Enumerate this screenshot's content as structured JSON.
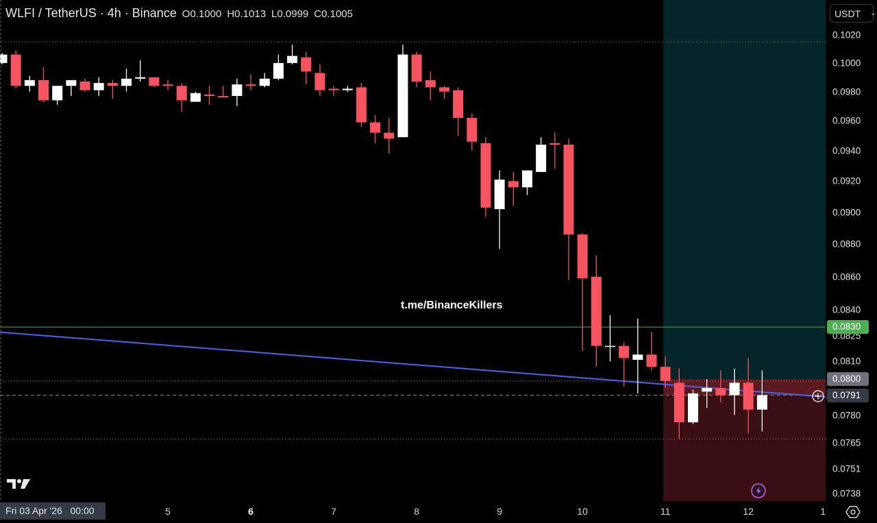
{
  "header": {
    "symbol": "WLFI / TetherUS · 4h · Binance",
    "open": "O0.1000",
    "high": "H0.1013",
    "low": "L0.0999",
    "close": "C0.1005"
  },
  "currency_select": {
    "value": "USDT"
  },
  "watermark": "t.me/BinanceKillers",
  "crosshair_time_label": "Fri 03 Apr '26   00:00",
  "colors": {
    "background": "#000000",
    "up": "#ffffff",
    "down": "#f7525f",
    "trendline": "#4a63f0",
    "level_green": "#4caf50",
    "target_zone": "#052628",
    "stop_zone": "#3a0f14",
    "stop_zone_active": "#5a1a20",
    "accent_purple": "#b36ae2"
  },
  "chart_data": {
    "type": "candlestick",
    "title": "WLFI / TetherUS · 4h · Binance",
    "scale": "log",
    "ylim": [
      0.0734,
      0.1045
    ],
    "price_ticks": [
      "0.1020",
      "0.1000",
      "0.0980",
      "0.0960",
      "0.0940",
      "0.0920",
      "0.0900",
      "0.0880",
      "0.0860",
      "0.0840",
      "0.0825",
      "0.0810",
      "0.0780",
      "0.0765",
      "0.0751",
      "0.0738"
    ],
    "time_labels": [
      {
        "label": "5",
        "index": 12,
        "bold": false
      },
      {
        "label": "6",
        "index": 18,
        "bold": true
      },
      {
        "label": "7",
        "index": 24,
        "bold": false
      },
      {
        "label": "8",
        "index": 30,
        "bold": false
      },
      {
        "label": "9",
        "index": 36,
        "bold": false
      },
      {
        "label": "10",
        "index": 42,
        "bold": false
      },
      {
        "label": "11",
        "index": 48,
        "bold": false
      },
      {
        "label": "12",
        "index": 54,
        "bold": false
      },
      {
        "label": "1",
        "index": 59.4,
        "bold": false
      }
    ],
    "candles": [
      [
        0.1,
        0.1007,
        0.0999,
        0.1006
      ],
      [
        0.1006,
        0.1009,
        0.0982,
        0.0984
      ],
      [
        0.0984,
        0.0991,
        0.098,
        0.0988
      ],
      [
        0.0988,
        0.0997,
        0.0973,
        0.0974
      ],
      [
        0.0974,
        0.0984,
        0.0971,
        0.0984
      ],
      [
        0.0984,
        0.0988,
        0.0977,
        0.0988
      ],
      [
        0.0987,
        0.0989,
        0.098,
        0.0981
      ],
      [
        0.0981,
        0.099,
        0.0977,
        0.0986
      ],
      [
        0.0986,
        0.0988,
        0.0975,
        0.0984
      ],
      [
        0.0984,
        0.0996,
        0.098,
        0.0989
      ],
      [
        0.0989,
        0.1002,
        0.0987,
        0.099
      ],
      [
        0.099,
        0.099,
        0.0983,
        0.0984
      ],
      [
        0.0985,
        0.0988,
        0.0981,
        0.0984
      ],
      [
        0.0984,
        0.0986,
        0.0966,
        0.0974
      ],
      [
        0.0973,
        0.098,
        0.0973,
        0.0979
      ],
      [
        0.0978,
        0.0984,
        0.0971,
        0.0977
      ],
      [
        0.0977,
        0.0984,
        0.0976,
        0.0976
      ],
      [
        0.0977,
        0.0989,
        0.097,
        0.0985
      ],
      [
        0.0985,
        0.0992,
        0.0981,
        0.0984
      ],
      [
        0.0984,
        0.0993,
        0.0983,
        0.0989
      ],
      [
        0.0989,
        0.1006,
        0.0988,
        0.1
      ],
      [
        0.1,
        0.1013,
        0.0999,
        0.1005
      ],
      [
        0.1004,
        0.1008,
        0.0985,
        0.0994
      ],
      [
        0.0993,
        0.0999,
        0.0977,
        0.0981
      ],
      [
        0.0982,
        0.0984,
        0.0977,
        0.0981
      ],
      [
        0.0981,
        0.0984,
        0.098,
        0.0982
      ],
      [
        0.0983,
        0.0986,
        0.0956,
        0.0959
      ],
      [
        0.0959,
        0.0964,
        0.0945,
        0.0952
      ],
      [
        0.0952,
        0.0962,
        0.0938,
        0.0948
      ],
      [
        0.0949,
        0.1013,
        0.0949,
        0.1006
      ],
      [
        0.1006,
        0.1008,
        0.0983,
        0.0987
      ],
      [
        0.0988,
        0.0994,
        0.0974,
        0.0983
      ],
      [
        0.0983,
        0.0984,
        0.0975,
        0.098
      ],
      [
        0.0981,
        0.0983,
        0.095,
        0.0962
      ],
      [
        0.0962,
        0.0965,
        0.094,
        0.0946
      ],
      [
        0.0945,
        0.0949,
        0.0897,
        0.0903
      ],
      [
        0.0902,
        0.0927,
        0.0877,
        0.0921
      ],
      [
        0.092,
        0.0926,
        0.0904,
        0.0916
      ],
      [
        0.0916,
        0.0927,
        0.0911,
        0.0927
      ],
      [
        0.0926,
        0.0949,
        0.0926,
        0.0944
      ],
      [
        0.0945,
        0.0952,
        0.0928,
        0.0944
      ],
      [
        0.0944,
        0.0948,
        0.0858,
        0.0886
      ],
      [
        0.0886,
        0.0887,
        0.0816,
        0.0859
      ],
      [
        0.086,
        0.0873,
        0.0807,
        0.0819
      ],
      [
        0.0819,
        0.0837,
        0.081,
        0.0819
      ],
      [
        0.0819,
        0.0821,
        0.0796,
        0.0812
      ],
      [
        0.0811,
        0.0835,
        0.0792,
        0.0814
      ],
      [
        0.0814,
        0.0827,
        0.0805,
        0.0807
      ],
      [
        0.0807,
        0.0813,
        0.0795,
        0.0799
      ],
      [
        0.0798,
        0.0806,
        0.0767,
        0.0776
      ],
      [
        0.0776,
        0.0794,
        0.0775,
        0.0792
      ],
      [
        0.0793,
        0.08,
        0.0784,
        0.0795
      ],
      [
        0.0795,
        0.0805,
        0.0787,
        0.0791
      ],
      [
        0.0791,
        0.0806,
        0.078,
        0.0798
      ],
      [
        0.0798,
        0.0812,
        0.077,
        0.0783
      ],
      [
        0.0783,
        0.0805,
        0.0771,
        0.0791
      ]
    ],
    "candle_format": [
      "open",
      "high",
      "low",
      "close"
    ],
    "levels": [
      {
        "price": 0.1015,
        "style": "dotted"
      },
      {
        "price": 0.0799,
        "style": "dotted"
      },
      {
        "price": 0.0767,
        "style": "dotted"
      },
      {
        "price": 0.083,
        "style": "solid-green"
      }
    ],
    "trendline": {
      "start": {
        "index": -0.15,
        "price": 0.0827
      },
      "end": {
        "index": 59.6,
        "price": 0.079
      }
    },
    "position_tool": {
      "start_index": 48,
      "entry": 0.08,
      "stop": 0.0734
    },
    "last_price": 0.0791,
    "price_badges": [
      {
        "label": "0.0830",
        "price": 0.083,
        "kind": "green"
      },
      {
        "label": "0.0800",
        "price": 0.08,
        "kind": "gray"
      },
      {
        "label": "0.0791",
        "price": 0.0791,
        "kind": "dark"
      }
    ]
  }
}
